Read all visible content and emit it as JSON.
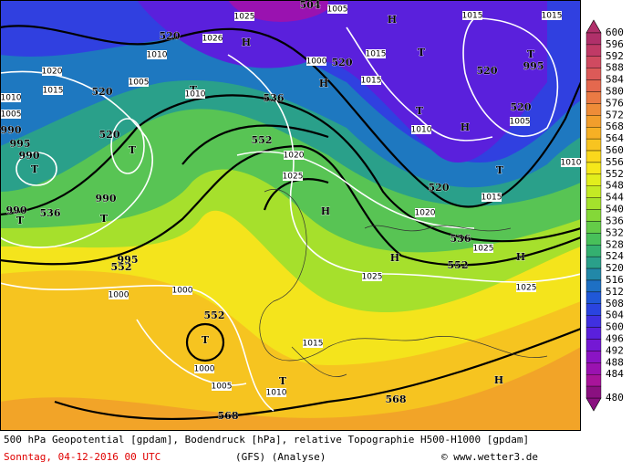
{
  "footer": {
    "line1": "500 hPa Geopotential [gpdam], Bodendruck [hPa], relative Topographie H500-H1000 [gpdam]",
    "date": "Sonntag, 04-12-2016  00 UTC",
    "model": "(GFS)  (Analyse)",
    "credit": "© www.wetter3.de"
  },
  "colorbar": {
    "values": [
      600,
      596,
      592,
      588,
      584,
      580,
      576,
      572,
      568,
      564,
      560,
      556,
      552,
      548,
      544,
      540,
      536,
      532,
      528,
      524,
      520,
      516,
      512,
      508,
      504,
      500,
      496,
      492,
      488,
      484,
      480
    ],
    "colors": [
      "#b0306a",
      "#c03a66",
      "#d04a60",
      "#dc5a58",
      "#e4684e",
      "#ea7a44",
      "#ee8c38",
      "#f29e2c",
      "#f6b024",
      "#f8c420",
      "#fad81c",
      "#f6e81a",
      "#e2ee1c",
      "#c4ea24",
      "#a4e22c",
      "#84d838",
      "#64cc48",
      "#48c05a",
      "#34b070",
      "#2aa08a",
      "#2288a8",
      "#1e70c4",
      "#2058d8",
      "#2a44e0",
      "#4030e0",
      "#5a20dc",
      "#7418d4",
      "#8a14c4",
      "#9a12b0",
      "#a8149a",
      "#8a1080"
    ]
  },
  "map_labels": [
    "504",
    "1005",
    "1025",
    "H",
    "1015",
    "1015",
    "520",
    "1026",
    "H",
    "T",
    "1010",
    "520",
    "1015",
    "1000",
    "520",
    "T",
    "995",
    "1020",
    "1005",
    "1015",
    "520",
    "T",
    "1010",
    "536",
    "H",
    "1015",
    "520",
    "1005",
    "1010",
    "1005",
    "990",
    "520",
    "T",
    "552",
    "1020",
    "T",
    "H",
    "1010",
    "995",
    "990",
    "T",
    "T",
    "1025",
    "520",
    "1015",
    "1010",
    "990",
    "536",
    "T",
    "T",
    "990",
    "H",
    "1020",
    "536",
    "1025",
    "H",
    "552",
    "H",
    "552",
    "995",
    "1025",
    "1000",
    "1000",
    "1025",
    "552",
    "T",
    "1015",
    "1000",
    "T",
    "1005",
    "1010",
    "H",
    "568",
    "568"
  ]
}
